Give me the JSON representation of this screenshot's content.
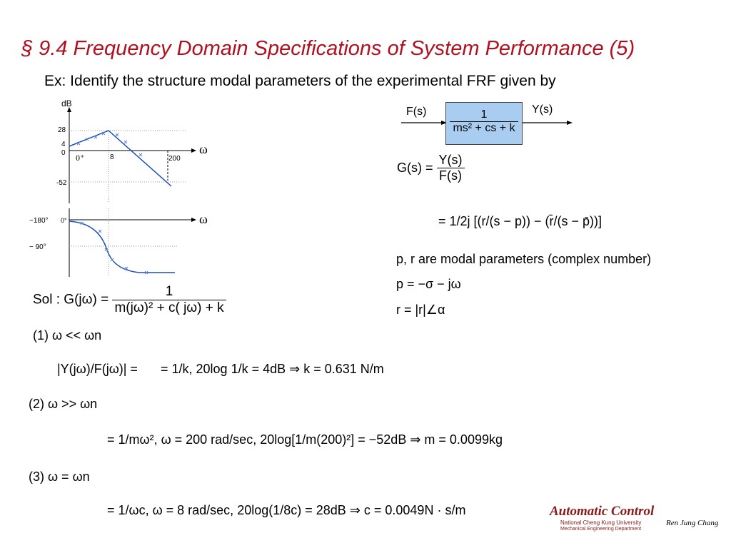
{
  "slide": {
    "title": "§ 9.4  Frequency Domain Specifications of System Performance (5)",
    "subtitle": "Ex: Identify the structure modal parameters of the experimental FRF given by"
  },
  "mag_plot": {
    "ylabel": "dB",
    "y_ticks": [
      "28",
      "4",
      "0",
      "-52"
    ],
    "x_ticks": [
      "0⁺",
      "8",
      "200"
    ],
    "omega": "ω"
  },
  "phase_plot": {
    "y_ticks": [
      "−180°",
      "− 90°"
    ],
    "zero_tick": "0°",
    "omega": "ω"
  },
  "block": {
    "input": "F(s)",
    "output": "Y(s)",
    "tf_num": "1",
    "tf_den": "ms² + cs + k"
  },
  "right": {
    "g_lhs": "G(s) =",
    "g_num": "Y(s)",
    "g_den": "F(s)",
    "modal_eq": "= 1/2j [(r/(s − p)) − (r̄/(s − p̄))]",
    "modal_note": "p, r are modal parameters (complex number)",
    "p_eq": "p = −σ − jω",
    "r_eq": "r = |r|∠α"
  },
  "solution": {
    "sol_lhs": "Sol : G(jω) =",
    "sol_num": "1",
    "sol_den": "m(jω)² + c( jω) + k",
    "c1_label": "(1) ω << ωn",
    "c1_lhs": "|Y(jω)/F(jω)| =",
    "c1_eq": "= 1/k, 20log 1/k = 4dB ⇒ k = 0.631 N/m",
    "c2_label": "(2) ω >> ωn",
    "c2_eq": "= 1/mω², ω = 200 rad/sec, 20log[1/m(200)²] = −52dB ⇒ m = 0.0099kg",
    "c3_label": "(3) ω = ωn",
    "c3_eq": "= 1/ωc, ω = 8 rad/sec, 20log(1/8c) = 28dB ⇒ c = 0.0049N · s/m"
  },
  "footer": {
    "brand": "Automatic Control",
    "univ": "National Cheng Kung University",
    "dept": "Mechanical Engineering Department",
    "author": "Ren Jung Chang"
  }
}
